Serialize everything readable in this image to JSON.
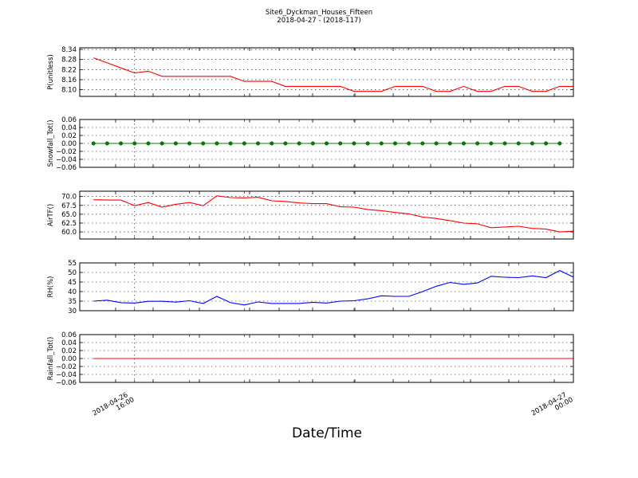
{
  "title": "Site6_Dyckman_Houses_Fifteen",
  "subtitle": "2018-04-27 - (2018-117)",
  "xlabel": "Date/Time",
  "x_ticks": [
    {
      "line1": "2018-04-26",
      "line2": "16:00",
      "x": 2.0
    },
    {
      "line1": "2018-04-27",
      "line2": "00:00",
      "x": 10.0
    }
  ],
  "chart_data": [
    {
      "type": "line",
      "ylabel": "P(unitless)",
      "ylim": [
        8.06,
        8.35
      ],
      "yticks": [
        "8.34",
        "8.28",
        "8.22",
        "8.16",
        "8.10"
      ],
      "ytick_values": [
        8.34,
        8.28,
        8.22,
        8.16,
        8.1
      ],
      "grid": true,
      "color": "#ff0000",
      "markers": false,
      "x": [
        1.25,
        1.5,
        1.75,
        2.0,
        2.25,
        2.5,
        2.75,
        3.0,
        3.25,
        3.5,
        3.75,
        4.0,
        4.25,
        4.5,
        4.75,
        5.0,
        5.25,
        5.5,
        5.75,
        6.0,
        6.25,
        6.5,
        6.75,
        7.0,
        7.25,
        7.5,
        7.75,
        8.0,
        8.25,
        8.5,
        8.75,
        9.0,
        9.25,
        9.5,
        9.75,
        10.0
      ],
      "values": [
        8.29,
        8.26,
        8.23,
        8.2,
        8.21,
        8.18,
        8.18,
        8.18,
        8.18,
        8.18,
        8.18,
        8.15,
        8.15,
        8.15,
        8.12,
        8.12,
        8.12,
        8.12,
        8.12,
        8.09,
        8.09,
        8.09,
        8.12,
        8.12,
        8.12,
        8.09,
        8.09,
        8.12,
        8.09,
        8.09,
        8.12,
        8.12,
        8.09,
        8.09,
        8.12,
        8.12
      ]
    },
    {
      "type": "line",
      "ylabel": "Snowfall_Tot()",
      "ylim": [
        -0.06,
        0.06
      ],
      "yticks": [
        "0.06",
        "0.04",
        "0.02",
        "0.00",
        "−0.02",
        "−0.04",
        "−0.06"
      ],
      "ytick_values": [
        0.06,
        0.04,
        0.02,
        0.0,
        -0.02,
        -0.04,
        -0.06
      ],
      "grid": true,
      "color": "#008000",
      "markers": true,
      "x": [
        1.25,
        1.5,
        1.75,
        2.0,
        2.25,
        2.5,
        2.75,
        3.0,
        3.25,
        3.5,
        3.75,
        4.0,
        4.25,
        4.5,
        4.75,
        5.0,
        5.25,
        5.5,
        5.75,
        6.0,
        6.25,
        6.5,
        6.75,
        7.0,
        7.25,
        7.5,
        7.75,
        8.0,
        8.25,
        8.5,
        8.75,
        9.0,
        9.25,
        9.5,
        9.75
      ],
      "values": [
        0,
        0,
        0,
        0,
        0,
        0,
        0,
        0,
        0,
        0,
        0,
        0,
        0,
        0,
        0,
        0,
        0,
        0,
        0,
        0,
        0,
        0,
        0,
        0,
        0,
        0,
        0,
        0,
        0,
        0,
        0,
        0,
        0,
        0,
        0
      ]
    },
    {
      "type": "line",
      "ylabel": "AirTF()",
      "ylim": [
        58.0,
        71.5
      ],
      "yticks": [
        "70.0",
        "67.5",
        "65.0",
        "62.5",
        "60.0"
      ],
      "ytick_values": [
        70.0,
        67.5,
        65.0,
        62.5,
        60.0
      ],
      "grid": true,
      "color": "#ff0000",
      "markers": false,
      "x": [
        1.25,
        1.5,
        1.75,
        2.0,
        2.25,
        2.5,
        2.75,
        3.0,
        3.25,
        3.5,
        3.75,
        4.0,
        4.25,
        4.5,
        4.75,
        5.0,
        5.25,
        5.5,
        5.75,
        6.0,
        6.25,
        6.5,
        6.75,
        7.0,
        7.25,
        7.5,
        7.75,
        8.0,
        8.25,
        8.5,
        8.75,
        9.0,
        9.25,
        9.5,
        9.75,
        10.0
      ],
      "values": [
        69.1,
        69.0,
        69.0,
        67.4,
        68.3,
        67.0,
        67.8,
        68.3,
        67.4,
        70.2,
        69.7,
        69.6,
        69.8,
        68.8,
        68.6,
        68.2,
        68.0,
        68.0,
        67.1,
        67.0,
        66.3,
        66.0,
        65.5,
        65.1,
        64.2,
        63.8,
        63.2,
        62.5,
        62.3,
        61.2,
        61.4,
        61.6,
        61.0,
        60.8,
        60.0,
        60.2
      ]
    },
    {
      "type": "line",
      "ylabel": "RH(%)",
      "ylim": [
        30,
        55
      ],
      "yticks": [
        "55",
        "50",
        "45",
        "40",
        "35",
        "30"
      ],
      "ytick_values": [
        55,
        50,
        45,
        40,
        35,
        30
      ],
      "grid": true,
      "color": "#0000ff",
      "markers": false,
      "x": [
        1.25,
        1.5,
        1.75,
        2.0,
        2.25,
        2.5,
        2.75,
        3.0,
        3.25,
        3.5,
        3.75,
        4.0,
        4.25,
        4.5,
        4.75,
        5.0,
        5.25,
        5.5,
        5.75,
        6.0,
        6.25,
        6.5,
        6.75,
        7.0,
        7.25,
        7.5,
        7.75,
        8.0,
        8.25,
        8.5,
        8.75,
        9.0,
        9.25,
        9.5,
        9.75,
        10.0
      ],
      "values": [
        35.0,
        35.5,
        34.2,
        34.0,
        34.9,
        34.9,
        34.5,
        35.2,
        33.8,
        37.5,
        34.2,
        33.0,
        34.6,
        33.8,
        33.8,
        33.8,
        34.4,
        34.0,
        35.0,
        35.2,
        36.2,
        37.8,
        37.5,
        37.5,
        40.0,
        42.8,
        44.8,
        43.8,
        44.5,
        48.0,
        47.5,
        47.3,
        48.2,
        47.3,
        51.0,
        47.6
      ]
    },
    {
      "type": "line",
      "ylabel": "Rainfall_Tot()",
      "ylim": [
        -0.06,
        0.06
      ],
      "yticks": [
        "0.06",
        "0.04",
        "0.02",
        "0.00",
        "−0.02",
        "−0.04",
        "−0.06"
      ],
      "ytick_values": [
        0.06,
        0.04,
        0.02,
        0.0,
        -0.02,
        -0.04,
        -0.06
      ],
      "grid": true,
      "color": "#ff0000",
      "markers": false,
      "x": [
        1.25,
        10.0
      ],
      "values": [
        0,
        0
      ]
    }
  ]
}
